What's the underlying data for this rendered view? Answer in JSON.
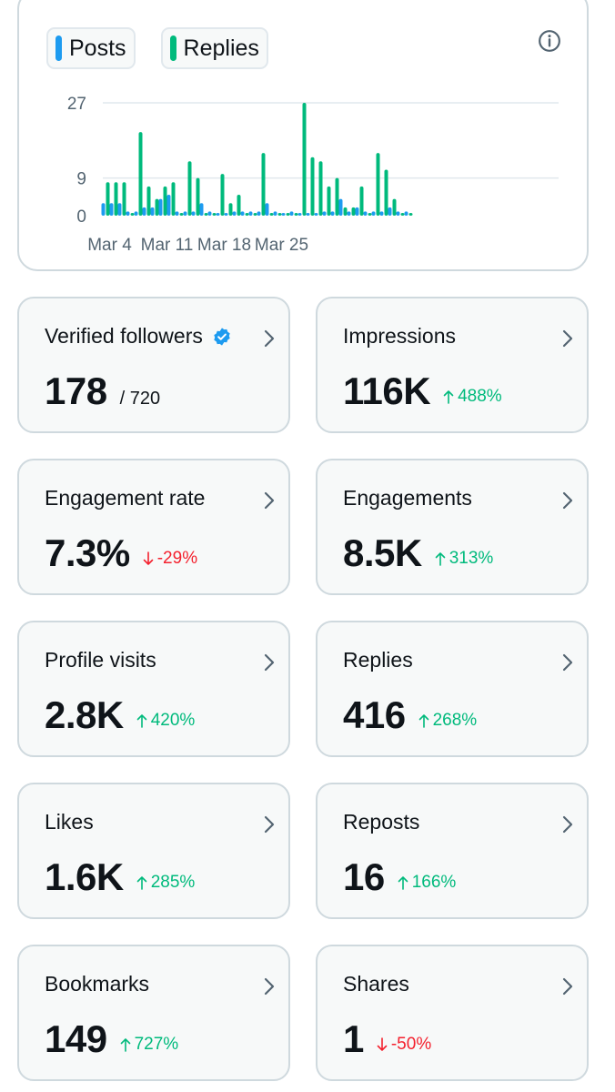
{
  "legend": {
    "posts_label": "Posts",
    "replies_label": "Replies",
    "posts_color": "#1d9bf0",
    "replies_color": "#00ba7c"
  },
  "chart_data": {
    "type": "bar",
    "title": "",
    "xlabel": "",
    "ylabel": "",
    "y_ticks": [
      0,
      9,
      27
    ],
    "ylim": [
      0,
      27
    ],
    "x_tick_labels": [
      "Mar 4",
      "Mar 11",
      "Mar 18",
      "Mar 25"
    ],
    "categories": [
      "Mar 3",
      "Mar 4",
      "Mar 5",
      "Mar 6",
      "Mar 7",
      "Mar 8",
      "Mar 9",
      "Mar 10",
      "Mar 11",
      "Mar 12",
      "Mar 13",
      "Mar 14",
      "Mar 15",
      "Mar 16",
      "Mar 17",
      "Mar 18",
      "Mar 19",
      "Mar 20",
      "Mar 21",
      "Mar 22",
      "Mar 23",
      "Mar 24",
      "Mar 25",
      "Mar 26",
      "Mar 27",
      "Mar 28",
      "Mar 29",
      "Mar 30",
      "Mar 31",
      "Apr 1",
      "Apr 2",
      "Apr 3",
      "Apr 4",
      "Apr 5",
      "Apr 6",
      "Apr 7",
      "Apr 8",
      "Apr 9"
    ],
    "series": [
      {
        "name": "Posts",
        "values": [
          3,
          3,
          3,
          1,
          1,
          2,
          2,
          4,
          5,
          1,
          1,
          1,
          3,
          1,
          0,
          0,
          1,
          1,
          1,
          1,
          3,
          1,
          0,
          1,
          0,
          0,
          0,
          1,
          1,
          4,
          1,
          2,
          1,
          1,
          1,
          2,
          1,
          1
        ]
      },
      {
        "name": "Replies",
        "values": [
          8,
          8,
          8,
          0,
          20,
          7,
          4,
          7,
          8,
          0,
          13,
          9,
          0,
          0,
          10,
          3,
          5,
          0,
          0,
          15,
          0,
          0,
          0,
          0,
          27,
          14,
          13,
          7,
          9,
          2,
          2,
          7,
          0,
          15,
          11,
          4,
          0,
          0
        ]
      }
    ]
  },
  "cards": [
    {
      "title": "Verified followers",
      "value": "178",
      "sub": "/ 720",
      "verified": true
    },
    {
      "title": "Impressions",
      "value": "116K",
      "delta": "488%",
      "direction": "up"
    },
    {
      "title": "Engagement rate",
      "value": "7.3%",
      "delta": "-29%",
      "direction": "down"
    },
    {
      "title": "Engagements",
      "value": "8.5K",
      "delta": "313%",
      "direction": "up"
    },
    {
      "title": "Profile visits",
      "value": "2.8K",
      "delta": "420%",
      "direction": "up"
    },
    {
      "title": "Replies",
      "value": "416",
      "delta": "268%",
      "direction": "up"
    },
    {
      "title": "Likes",
      "value": "1.6K",
      "delta": "285%",
      "direction": "up"
    },
    {
      "title": "Reposts",
      "value": "16",
      "delta": "166%",
      "direction": "up"
    },
    {
      "title": "Bookmarks",
      "value": "149",
      "delta": "727%",
      "direction": "up"
    },
    {
      "title": "Shares",
      "value": "1",
      "delta": "-50%",
      "direction": "down"
    }
  ]
}
